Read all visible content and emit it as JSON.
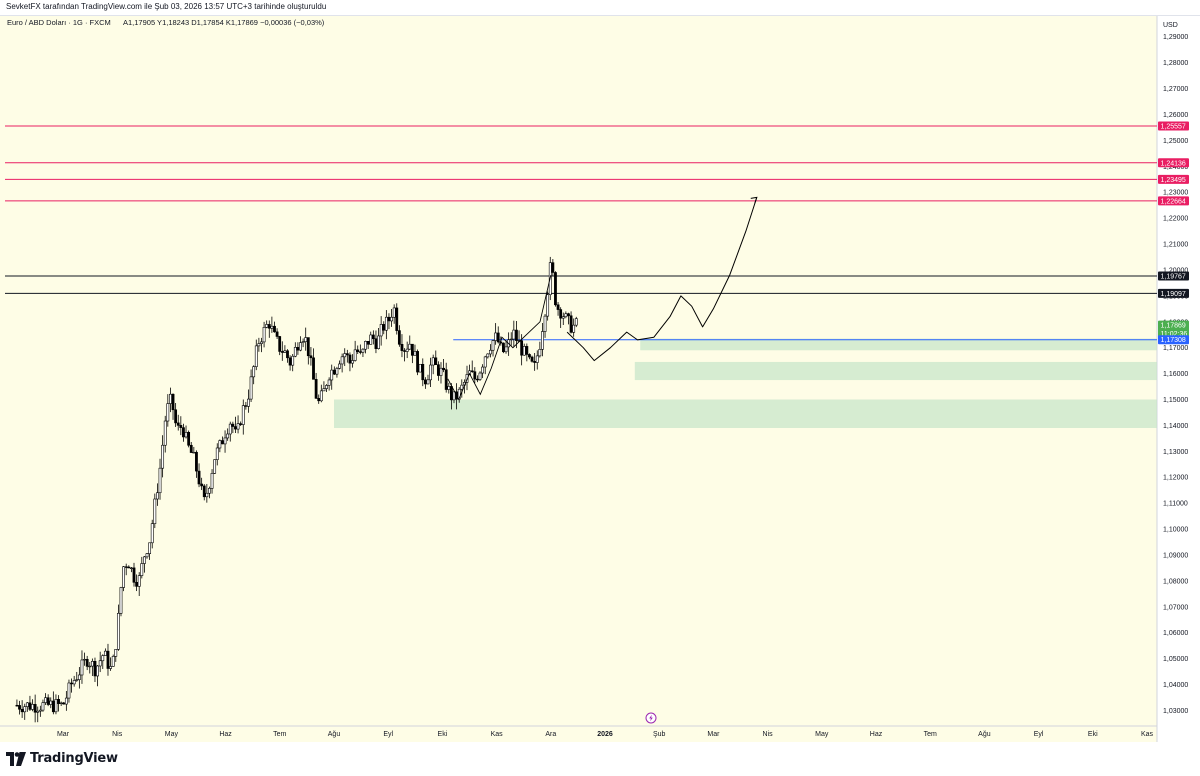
{
  "header": {
    "published_by": "SevketFX tarafından TradingView.com ile Şub 03, 2026 13:57 UTC+3 tarihinde oluşturuldu"
  },
  "legend": {
    "symbol": "Euro / ABD Doları · 1G · FXCM",
    "ohlc": "A1,17905  Y1,18243  D1,17854  K1,17869  −0,00036 (−0,03%)"
  },
  "branding": {
    "logo_text": "TradingView"
  },
  "colors": {
    "background": "#fefde6",
    "candle": "#000000",
    "resistance_pink": "#e91e63",
    "level_black": "#131722",
    "level_blue": "#2962ff",
    "price_green": "#4caf50",
    "zone_green": "#c8e6c9"
  },
  "chart_data": {
    "type": "candlestick",
    "y_axis": {
      "currency": "USD",
      "range": [
        1.024,
        1.298
      ],
      "ticks": [
        "1,29000",
        "1,28000",
        "1,27000",
        "1,26000",
        "1,25000",
        "1,24000",
        "1,23000",
        "1,22000",
        "1,21000",
        "1,20000",
        "1,19000",
        "1,18000",
        "1,17000",
        "1,16000",
        "1,15000",
        "1,14000",
        "1,13000",
        "1,12000",
        "1,11000",
        "1,10000",
        "1,09000",
        "1,08000",
        "1,07000",
        "1,06000",
        "1,05000",
        "1,04000",
        "1,03000"
      ],
      "tick_values": [
        1.29,
        1.28,
        1.27,
        1.26,
        1.25,
        1.24,
        1.23,
        1.22,
        1.21,
        1.2,
        1.19,
        1.18,
        1.17,
        1.16,
        1.15,
        1.14,
        1.13,
        1.12,
        1.11,
        1.1,
        1.09,
        1.08,
        1.07,
        1.06,
        1.05,
        1.04,
        1.03
      ]
    },
    "x_axis": {
      "months": [
        "Mar",
        "Nis",
        "May",
        "Haz",
        "Tem",
        "Ağu",
        "Eyl",
        "Eki",
        "Kas",
        "Ara",
        "2026",
        "Şub",
        "Mar",
        "Nis",
        "May",
        "Haz",
        "Tem",
        "Ağu",
        "Eyl",
        "Eki",
        "Kas"
      ],
      "month_index": [
        0,
        1,
        2,
        3,
        4,
        5,
        6,
        7,
        8,
        9,
        10,
        11,
        12,
        13,
        14,
        15,
        16,
        17,
        18,
        19,
        20
      ]
    },
    "horizontal_levels": [
      {
        "label": "1,25557",
        "value": 1.25557,
        "color": "#e91e63"
      },
      {
        "label": "1,24136",
        "value": 1.24136,
        "color": "#e91e63"
      },
      {
        "label": "1,23495",
        "value": 1.23495,
        "color": "#e91e63"
      },
      {
        "label": "1,22664",
        "value": 1.22664,
        "color": "#e91e63"
      },
      {
        "label": "1,19767",
        "value": 1.19767,
        "color": "#131722"
      },
      {
        "label": "1,19097",
        "value": 1.19097,
        "color": "#131722"
      }
    ],
    "blue_level": {
      "label": "1,17308",
      "value": 1.17308,
      "color": "#2962ff",
      "start_month": 7.2
    },
    "current_price": {
      "label": "1,17869",
      "countdown": "11:02:36",
      "value": 1.17869,
      "color": "#4caf50"
    },
    "zones": [
      {
        "from": 1.169,
        "to": 1.1735,
        "start_month": 10.65
      },
      {
        "from": 1.1575,
        "to": 1.1645,
        "start_month": 10.55
      },
      {
        "from": 1.139,
        "to": 1.15,
        "start_month": 5.0
      }
    ],
    "price_path": [
      [
        0.0,
        1.032
      ],
      [
        0.15,
        1.04
      ],
      [
        0.3,
        1.045
      ],
      [
        0.45,
        1.05
      ],
      [
        0.6,
        1.046
      ],
      [
        0.75,
        1.052
      ],
      [
        0.9,
        1.045
      ],
      [
        1.0,
        1.06
      ],
      [
        1.1,
        1.085
      ],
      [
        1.2,
        1.088
      ],
      [
        1.3,
        1.082
      ],
      [
        1.4,
        1.08
      ],
      [
        1.5,
        1.09
      ],
      [
        1.6,
        1.096
      ],
      [
        1.7,
        1.11
      ],
      [
        1.8,
        1.125
      ],
      [
        1.9,
        1.145
      ],
      [
        2.0,
        1.15
      ],
      [
        2.1,
        1.138
      ],
      [
        2.2,
        1.14
      ],
      [
        2.3,
        1.132
      ],
      [
        2.4,
        1.128
      ],
      [
        2.5,
        1.12
      ],
      [
        2.6,
        1.11
      ],
      [
        2.7,
        1.118
      ],
      [
        2.8,
        1.128
      ],
      [
        2.9,
        1.132
      ],
      [
        3.0,
        1.138
      ],
      [
        3.1,
        1.142
      ],
      [
        3.2,
        1.135
      ],
      [
        3.3,
        1.145
      ],
      [
        3.4,
        1.15
      ],
      [
        3.5,
        1.16
      ],
      [
        3.6,
        1.172
      ],
      [
        3.7,
        1.176
      ],
      [
        3.8,
        1.18
      ],
      [
        3.9,
        1.174
      ],
      [
        4.0,
        1.17
      ],
      [
        4.1,
        1.168
      ],
      [
        4.2,
        1.164
      ],
      [
        4.3,
        1.17
      ],
      [
        4.4,
        1.176
      ],
      [
        4.5,
        1.172
      ],
      [
        4.6,
        1.16
      ],
      [
        4.7,
        1.148
      ],
      [
        4.8,
        1.152
      ],
      [
        4.9,
        1.16
      ],
      [
        5.0,
        1.162
      ],
      [
        5.1,
        1.166
      ],
      [
        5.2,
        1.168
      ],
      [
        5.3,
        1.164
      ],
      [
        5.4,
        1.17
      ],
      [
        5.5,
        1.166
      ],
      [
        5.6,
        1.172
      ],
      [
        5.7,
        1.174
      ],
      [
        5.8,
        1.172
      ],
      [
        5.9,
        1.178
      ],
      [
        6.0,
        1.18
      ],
      [
        6.1,
        1.186
      ],
      [
        6.2,
        1.174
      ],
      [
        6.3,
        1.17
      ],
      [
        6.4,
        1.172
      ],
      [
        6.5,
        1.166
      ],
      [
        6.6,
        1.16
      ],
      [
        6.7,
        1.158
      ],
      [
        6.8,
        1.164
      ],
      [
        6.9,
        1.162
      ],
      [
        7.0,
        1.16
      ],
      [
        7.1,
        1.154
      ],
      [
        7.2,
        1.15
      ],
      [
        7.3,
        1.152
      ],
      [
        7.4,
        1.156
      ],
      [
        7.5,
        1.16
      ],
      [
        7.6,
        1.158
      ],
      [
        7.7,
        1.162
      ],
      [
        7.8,
        1.168
      ],
      [
        7.9,
        1.172
      ],
      [
        8.0,
        1.174
      ],
      [
        8.1,
        1.168
      ],
      [
        8.2,
        1.17
      ],
      [
        8.3,
        1.176
      ],
      [
        8.4,
        1.172
      ],
      [
        8.5,
        1.168
      ],
      [
        8.6,
        1.164
      ],
      [
        8.7,
        1.162
      ],
      [
        8.8,
        1.172
      ],
      [
        8.9,
        1.186
      ],
      [
        9.0,
        1.202
      ],
      [
        9.05,
        1.196
      ],
      [
        9.1,
        1.186
      ],
      [
        9.2,
        1.184
      ],
      [
        9.3,
        1.18
      ],
      [
        9.4,
        1.178
      ],
      [
        9.5,
        1.179
      ]
    ]
  }
}
